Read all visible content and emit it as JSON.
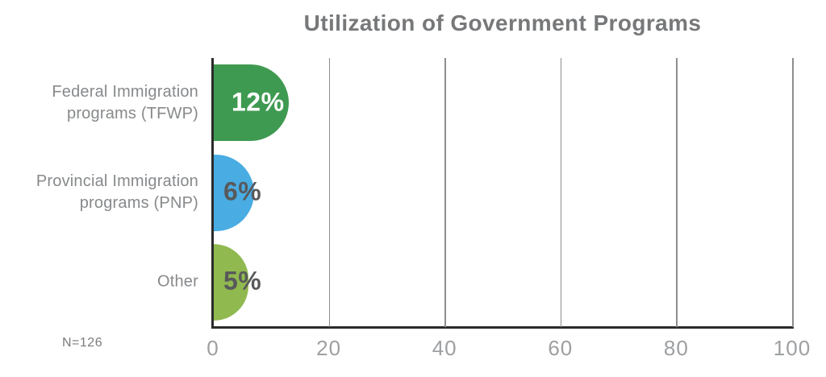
{
  "title": "Utilization of Government Programs",
  "note": "N=126",
  "chart_data": {
    "type": "bar",
    "orientation": "horizontal",
    "title": "Utilization of Government Programs",
    "note": "N=126",
    "categories": [
      "Federal Immigration programs (TFWP)",
      "Provincial Immigration programs (PNP)",
      "Other"
    ],
    "category_lines": [
      [
        "Federal Immigration",
        "programs (TFWP)"
      ],
      [
        "Provincial Immigration",
        "programs (PNP)"
      ],
      [
        "Other"
      ]
    ],
    "values": [
      12,
      6,
      5
    ],
    "value_labels": [
      "12%",
      "6%",
      "5%"
    ],
    "bar_colors": [
      "#3f9a51",
      "#49ace2",
      "#90b94f"
    ],
    "value_label_colors": [
      "#ffffff",
      "#58595b",
      "#58595b"
    ],
    "xlabel": "",
    "ylabel": "",
    "xlim": [
      0,
      100
    ],
    "x_ticks": [
      0,
      20,
      40,
      60,
      80,
      100
    ],
    "grid": "vertical",
    "legend": "none",
    "colors": {
      "title_text": "#77787a",
      "category_text": "#87898b",
      "tick_text": "#9d9fa1",
      "axis_line": "#2b2b2b",
      "gridline": "#8d8d8d",
      "background": "#ffffff"
    }
  }
}
